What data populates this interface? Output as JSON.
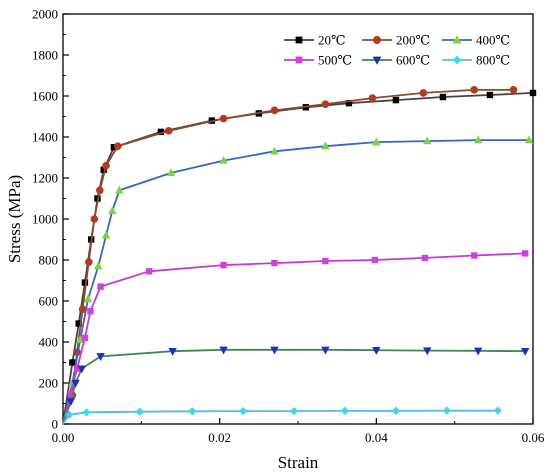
{
  "chart_data": {
    "type": "line",
    "title": "",
    "xlabel": "Strain",
    "ylabel": "Stress (MPa)",
    "xlim": [
      0,
      0.06
    ],
    "ylim": [
      0,
      2000
    ],
    "xticks": [
      0.0,
      0.02,
      0.04,
      0.06
    ],
    "xtick_labels": [
      "0.00",
      "0.02",
      "0.04",
      "0.06"
    ],
    "yticks": [
      0,
      200,
      400,
      600,
      800,
      1000,
      1200,
      1400,
      1600,
      1800,
      2000
    ],
    "ytick_labels": [
      "0",
      "200",
      "400",
      "600",
      "800",
      "1000",
      "1200",
      "1400",
      "1600",
      "1800",
      "2000"
    ],
    "grid": false,
    "legend_position": "top-right",
    "legend_columns": 3,
    "series": [
      {
        "name": "20℃",
        "color": "#000000",
        "line_color": "#444444",
        "marker": "square",
        "points": [
          [
            0.0,
            0
          ],
          [
            0.0012,
            300
          ],
          [
            0.002,
            490
          ],
          [
            0.0028,
            690
          ],
          [
            0.0036,
            900
          ],
          [
            0.0044,
            1100
          ],
          [
            0.0052,
            1240
          ],
          [
            0.0065,
            1350
          ],
          [
            0.0125,
            1425
          ],
          [
            0.019,
            1480
          ],
          [
            0.025,
            1515
          ],
          [
            0.031,
            1545
          ],
          [
            0.0365,
            1565
          ],
          [
            0.0425,
            1580
          ],
          [
            0.0485,
            1595
          ],
          [
            0.0545,
            1605
          ],
          [
            0.06,
            1615
          ]
        ]
      },
      {
        "name": "200℃",
        "color": "#b33a1e",
        "line_color": "#8e4a2e",
        "marker": "circle",
        "points": [
          [
            0.0,
            0
          ],
          [
            0.0012,
            140
          ],
          [
            0.0018,
            350
          ],
          [
            0.0025,
            560
          ],
          [
            0.0033,
            790
          ],
          [
            0.004,
            1000
          ],
          [
            0.0047,
            1140
          ],
          [
            0.0055,
            1260
          ],
          [
            0.007,
            1355
          ],
          [
            0.0135,
            1430
          ],
          [
            0.0205,
            1490
          ],
          [
            0.027,
            1530
          ],
          [
            0.0335,
            1560
          ],
          [
            0.0395,
            1590
          ],
          [
            0.046,
            1615
          ],
          [
            0.0525,
            1630
          ],
          [
            0.0575,
            1630
          ]
        ]
      },
      {
        "name": "400℃",
        "color": "#7fd43a",
        "line_color": "#3567c8",
        "marker": "triangle-up",
        "points": [
          [
            0.0,
            0
          ],
          [
            0.0012,
            200
          ],
          [
            0.0022,
            410
          ],
          [
            0.0032,
            610
          ],
          [
            0.0045,
            770
          ],
          [
            0.0055,
            920
          ],
          [
            0.0063,
            1040
          ],
          [
            0.0072,
            1140
          ],
          [
            0.0138,
            1225
          ],
          [
            0.0205,
            1285
          ],
          [
            0.027,
            1330
          ],
          [
            0.0335,
            1355
          ],
          [
            0.04,
            1375
          ],
          [
            0.0465,
            1380
          ],
          [
            0.053,
            1385
          ],
          [
            0.0595,
            1385
          ]
        ]
      },
      {
        "name": "500℃",
        "color": "#d23fe0",
        "line_color": "#c23ad4",
        "marker": "square",
        "points": [
          [
            0.0,
            0
          ],
          [
            0.001,
            150
          ],
          [
            0.0018,
            270
          ],
          [
            0.0028,
            420
          ],
          [
            0.0035,
            550
          ],
          [
            0.0048,
            670
          ],
          [
            0.011,
            745
          ],
          [
            0.0205,
            775
          ],
          [
            0.027,
            785
          ],
          [
            0.0335,
            795
          ],
          [
            0.0398,
            800
          ],
          [
            0.0462,
            810
          ],
          [
            0.0525,
            822
          ],
          [
            0.059,
            832
          ]
        ]
      },
      {
        "name": "600℃",
        "color": "#1b2fc8",
        "line_color": "#3d8a4a",
        "marker": "triangle-down",
        "points": [
          [
            0.0,
            0
          ],
          [
            0.001,
            110
          ],
          [
            0.0016,
            200
          ],
          [
            0.0024,
            270
          ],
          [
            0.0048,
            330
          ],
          [
            0.014,
            355
          ],
          [
            0.0205,
            362
          ],
          [
            0.027,
            362
          ],
          [
            0.0335,
            362
          ],
          [
            0.04,
            360
          ],
          [
            0.0465,
            358
          ],
          [
            0.053,
            357
          ],
          [
            0.059,
            355
          ]
        ]
      },
      {
        "name": "800℃",
        "color": "#3fd8ec",
        "line_color": "#58b8e8",
        "marker": "diamond",
        "points": [
          [
            0.0,
            0
          ],
          [
            0.0008,
            45
          ],
          [
            0.003,
            57
          ],
          [
            0.0098,
            60
          ],
          [
            0.0165,
            62
          ],
          [
            0.023,
            63
          ],
          [
            0.0295,
            63
          ],
          [
            0.036,
            64
          ],
          [
            0.0425,
            64
          ],
          [
            0.049,
            65
          ],
          [
            0.0555,
            65
          ]
        ]
      }
    ]
  }
}
